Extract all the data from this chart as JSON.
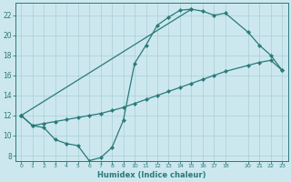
{
  "xlabel": "Humidex (Indice chaleur)",
  "bg_color": "#cce8ee",
  "grid_color": "#aacdd6",
  "line_color": "#2a7a7a",
  "curve1_x": [
    0,
    1,
    2,
    3,
    4,
    5,
    6,
    7,
    8,
    9,
    10,
    11,
    12,
    13,
    14,
    15
  ],
  "curve1_y": [
    12.0,
    11.0,
    10.8,
    9.6,
    9.2,
    9.0,
    7.5,
    7.8,
    8.8,
    11.5,
    17.2,
    19.0,
    21.0,
    21.8,
    22.5,
    22.6
  ],
  "curve2_x": [
    0,
    15,
    16,
    17,
    18,
    20,
    21,
    22,
    23
  ],
  "curve2_y": [
    12.0,
    22.6,
    22.4,
    22.0,
    22.2,
    20.3,
    19.0,
    18.0,
    16.5
  ],
  "curve3_x": [
    0,
    1,
    2,
    3,
    4,
    5,
    6,
    7,
    8,
    9,
    10,
    11,
    12,
    13,
    14,
    15,
    16,
    17,
    18,
    20,
    21,
    22,
    23
  ],
  "curve3_y": [
    12.0,
    11.0,
    11.2,
    11.4,
    11.6,
    11.8,
    12.0,
    12.2,
    12.5,
    12.8,
    13.2,
    13.6,
    14.0,
    14.4,
    14.8,
    15.2,
    15.6,
    16.0,
    16.4,
    17.0,
    17.3,
    17.5,
    16.5
  ],
  "xlim": [
    0,
    23
  ],
  "ylim": [
    7.5,
    23.0
  ],
  "yticks": [
    8,
    10,
    12,
    14,
    16,
    18,
    20,
    22
  ],
  "xticks": [
    0,
    1,
    2,
    3,
    4,
    5,
    6,
    7,
    8,
    9,
    10,
    11,
    12,
    13,
    14,
    15,
    16,
    17,
    18,
    20,
    21,
    22,
    23
  ]
}
